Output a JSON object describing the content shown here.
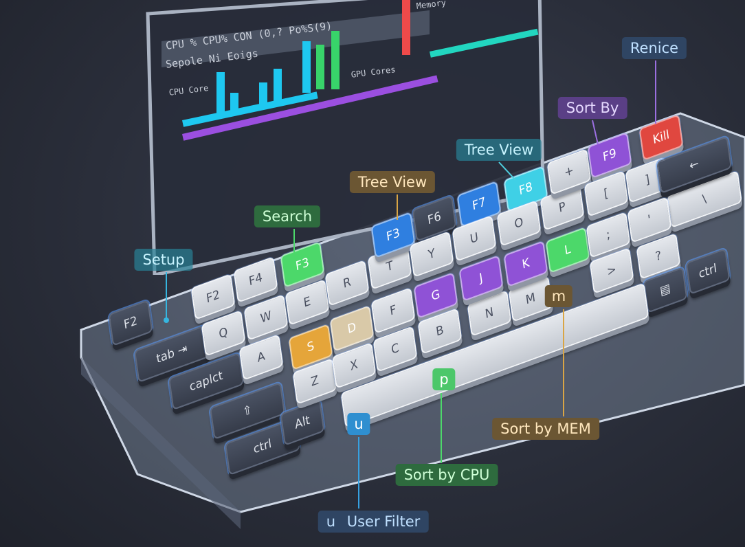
{
  "screen": {
    "header": "CPU % CPU% CON (0,? Po%S(9)",
    "subheader": "Sepole Ni Eoigs",
    "cpu_label": "CPU Core",
    "gpu_label": "GPU Cores",
    "memory_label": "Memory",
    "bar_colors": [
      "#1ec8f0",
      "#38d46a",
      "#9b4fe0",
      "#ef4a4a",
      "#22d6c0"
    ]
  },
  "keys": [
    {
      "label": "F2",
      "style": "dark"
    },
    {
      "label": "tab ⇥",
      "style": "dark"
    },
    {
      "label": "caplct",
      "style": "dark"
    },
    {
      "label": "⇧",
      "style": "dark"
    },
    {
      "label": "ctrl",
      "style": "dark"
    },
    {
      "label": "Alt",
      "style": "dark"
    },
    {
      "label": "F2",
      "style": "light"
    },
    {
      "label": "F4",
      "style": "light"
    },
    {
      "label": "F3",
      "style": "green"
    },
    {
      "label": "Q",
      "style": "light"
    },
    {
      "label": "W",
      "style": "light"
    },
    {
      "label": "E",
      "style": "light"
    },
    {
      "label": "R",
      "style": "light"
    },
    {
      "label": "T",
      "style": "light"
    },
    {
      "label": "A",
      "style": "light"
    },
    {
      "label": "S",
      "style": "orange"
    },
    {
      "label": "D",
      "style": "tan"
    },
    {
      "label": "F",
      "style": "light"
    },
    {
      "label": "G",
      "style": "purple"
    },
    {
      "label": "Z",
      "style": "light"
    },
    {
      "label": "X",
      "style": "light"
    },
    {
      "label": "C",
      "style": "light"
    },
    {
      "label": "B",
      "style": "light"
    },
    {
      "label": "N",
      "style": "light"
    },
    {
      "label": "M",
      "style": "light"
    },
    {
      "label": "F3",
      "style": "blue"
    },
    {
      "label": "F6",
      "style": "dark"
    },
    {
      "label": "F7",
      "style": "blue"
    },
    {
      "label": "F8",
      "style": "cyan"
    },
    {
      "label": "Y",
      "style": "light"
    },
    {
      "label": "U",
      "style": "light"
    },
    {
      "label": "O",
      "style": "light"
    },
    {
      "label": "P",
      "style": "light"
    },
    {
      "label": "J",
      "style": "purple"
    },
    {
      "label": "K",
      "style": "purple"
    },
    {
      "label": "L",
      "style": "green"
    },
    {
      "label": "+",
      "style": "light"
    },
    {
      "label": "F9",
      "style": "purple"
    },
    {
      "label": "Kill",
      "style": "red"
    },
    {
      "label": "[",
      "style": "light"
    },
    {
      "label": "]",
      "style": "light"
    },
    {
      "label": "\\",
      "style": "light"
    },
    {
      "label": "←",
      "style": "dark"
    },
    {
      "label": ";",
      "style": "light"
    },
    {
      "label": "'",
      "style": "light"
    },
    {
      "label": ">",
      "style": "light"
    },
    {
      "label": "?",
      "style": "light"
    },
    {
      "label": "▤",
      "style": "dark"
    },
    {
      "label": "ctrl",
      "style": "dark"
    },
    {
      "label": "",
      "style": "light"
    }
  ],
  "key_colors": {
    "green": "#4cd86a",
    "orange": "#e5a53a",
    "tan": "#d9c9a8",
    "purple": "#8f52d6",
    "blue": "#2f7fe0",
    "cyan": "#3fd0e6",
    "red": "#e0473f"
  },
  "callouts": {
    "renice": "Renice",
    "sort_by": "Sort By",
    "tree_view_f8": "Tree View",
    "tree_view_f5": "Tree View",
    "search": "Search",
    "setup": "Setup",
    "m_key": "m",
    "p_key": "p",
    "u_key": "u",
    "sort_mem": "Sort by MEM",
    "sort_cpu": "Sort by CPU",
    "user_filter_key": "u",
    "user_filter": "User Filter"
  }
}
